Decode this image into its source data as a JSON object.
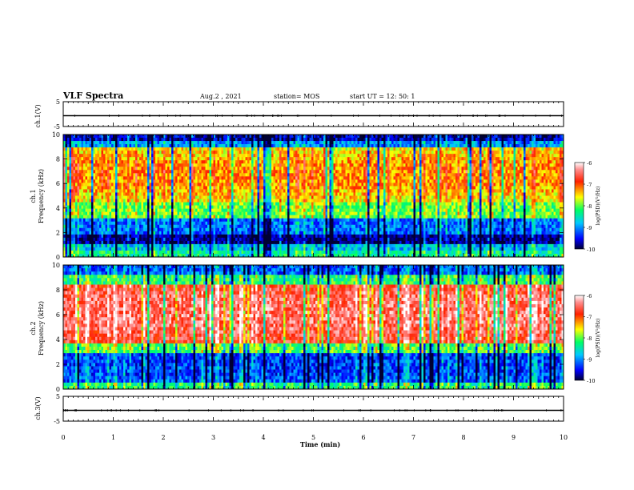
{
  "header": {
    "title": "VLF Spectra",
    "date": "Aug.2 , 2021",
    "station": "station= MOS",
    "start": "start  UT =   12: 50: 1"
  },
  "chart_data": [
    {
      "type": "line",
      "panel": "ch1-waveform",
      "ylabel": "ch.1(V)",
      "ylim": [
        -5,
        5
      ],
      "yticks": [
        "5",
        "-5"
      ],
      "xlim": [
        0,
        10
      ]
    },
    {
      "type": "heatmap",
      "panel": "ch1-spectrogram",
      "ylabel": "ch.1\nFrequency (kHz)",
      "ylim": [
        0,
        10
      ],
      "yticks": [
        "0",
        "2",
        "4",
        "6",
        "8",
        "10"
      ],
      "xlim": [
        0,
        10
      ],
      "colorbar": {
        "label": "log(PSD)(V²/Hz)",
        "range": [
          -10,
          -6
        ],
        "ticks": [
          "-6",
          "-7",
          "-8",
          "-9",
          "-10"
        ]
      }
    },
    {
      "type": "heatmap",
      "panel": "ch2-spectrogram",
      "ylabel": "ch.2\nFrequency (kHz)",
      "ylim": [
        0,
        10
      ],
      "yticks": [
        "0",
        "2",
        "4",
        "6",
        "8",
        "10"
      ],
      "xlim": [
        0,
        10
      ],
      "colorbar": {
        "label": "log(PSD)(V²/Hz)",
        "range": [
          -10,
          -6
        ],
        "ticks": [
          "-6",
          "-7",
          "-8",
          "-9",
          "-10"
        ]
      }
    },
    {
      "type": "line",
      "panel": "ch3-waveform",
      "ylabel": "ch.3(V)",
      "ylim": [
        -5,
        5
      ],
      "yticks": [
        "5",
        "-5"
      ],
      "xlim": [
        0,
        10
      ],
      "xlabel": "Time  (min)",
      "xticks": [
        "0",
        "1",
        "2",
        "3",
        "4",
        "5",
        "6",
        "7",
        "8",
        "9",
        "10"
      ]
    }
  ]
}
